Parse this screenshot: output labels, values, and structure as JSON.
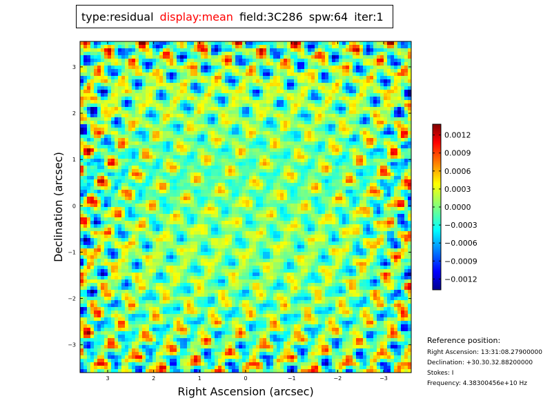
{
  "header": {
    "type": "type:residual",
    "display": "display:mean",
    "field": "field:3C286",
    "spw": "spw:64",
    "iter": "iter:1"
  },
  "colors": {
    "highlight": "#ff0000",
    "frame": "#000000"
  },
  "chart_data": {
    "type": "heatmap",
    "colormap": "jet",
    "xlabel": "Right Ascension (arcsec)",
    "ylabel": "Declination (arcsec)",
    "xlim": [
      3.6,
      -3.6
    ],
    "ylim": [
      -3.6,
      3.55
    ],
    "xticks": [
      {
        "value": 3,
        "label": "3"
      },
      {
        "value": 2,
        "label": "2"
      },
      {
        "value": 1,
        "label": "1"
      },
      {
        "value": 0,
        "label": "0"
      },
      {
        "value": -1,
        "label": "−1"
      },
      {
        "value": -2,
        "label": "−2"
      },
      {
        "value": -3,
        "label": "−3"
      }
    ],
    "yticks": [
      {
        "value": 3,
        "label": "3"
      },
      {
        "value": 2,
        "label": "2"
      },
      {
        "value": 1,
        "label": "1"
      },
      {
        "value": 0,
        "label": "0"
      },
      {
        "value": -1,
        "label": "−1"
      },
      {
        "value": -2,
        "label": "−2"
      },
      {
        "value": -3,
        "label": "−3"
      }
    ],
    "colorbar": {
      "range": [
        -0.00138,
        0.00138
      ],
      "ticks": [
        {
          "value": 0.0012,
          "label": "0.0012"
        },
        {
          "value": 0.0009,
          "label": "0.0009"
        },
        {
          "value": 0.0006,
          "label": "0.0006"
        },
        {
          "value": 0.0003,
          "label": "0.0003"
        },
        {
          "value": 0.0,
          "label": "0.0000"
        },
        {
          "value": -0.0003,
          "label": "−0.0003"
        },
        {
          "value": -0.0006,
          "label": "−0.0006"
        },
        {
          "value": -0.0009,
          "label": "−0.0009"
        },
        {
          "value": -0.0012,
          "label": "−0.0012"
        }
      ]
    }
  },
  "reference": {
    "heading": "Reference position:",
    "ra": "Right Ascension: 13:31:08.27900000",
    "dec": "Declination: +30.30.32.88200000",
    "stokes": "Stokes: I",
    "frequency": "Frequency: 4.38300456e+10 Hz"
  }
}
